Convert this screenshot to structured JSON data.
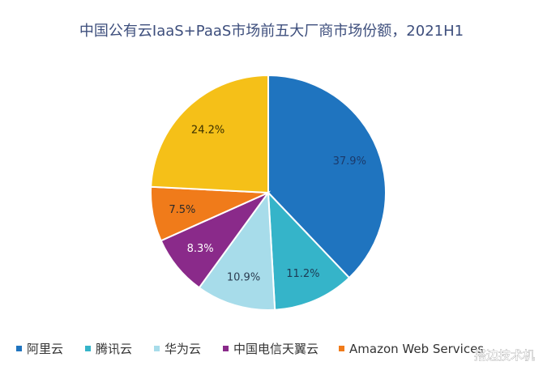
{
  "chart_data": {
    "type": "pie",
    "title": "中国公有云IaaS+PaaS市场前五大厂商市场份额，2021H1",
    "slices": [
      {
        "name": "阿里云",
        "value": 37.9,
        "label": "37.9%",
        "color": "#1f74bf",
        "label_color": "#1b3a6b"
      },
      {
        "name": "腾讯云",
        "value": 11.2,
        "label": "11.2%",
        "color": "#35b4c9",
        "label_color": "#1d3b55"
      },
      {
        "name": "华为云",
        "value": 10.9,
        "label": "10.9%",
        "color": "#a7dcea",
        "label_color": "#2b3c50"
      },
      {
        "name": "中国电信天翼云",
        "value": 8.3,
        "label": "8.3%",
        "color": "#8a2a8a",
        "label_color": "#ffffff"
      },
      {
        "name": "Amazon Web Services",
        "value": 7.5,
        "label": "7.5%",
        "color": "#f07b1a",
        "label_color": "#2b2b2b"
      },
      {
        "name": "",
        "value": 24.2,
        "label": "24.2%",
        "color": "#f5c018",
        "label_color": "#3a3000"
      }
    ],
    "legend": {
      "placement": "bottom",
      "items": [
        "阿里云",
        "腾讯云",
        "华为云",
        "中国电信天翼云",
        "Amazon Web Services"
      ]
    }
  },
  "watermark": "搭边技术机"
}
